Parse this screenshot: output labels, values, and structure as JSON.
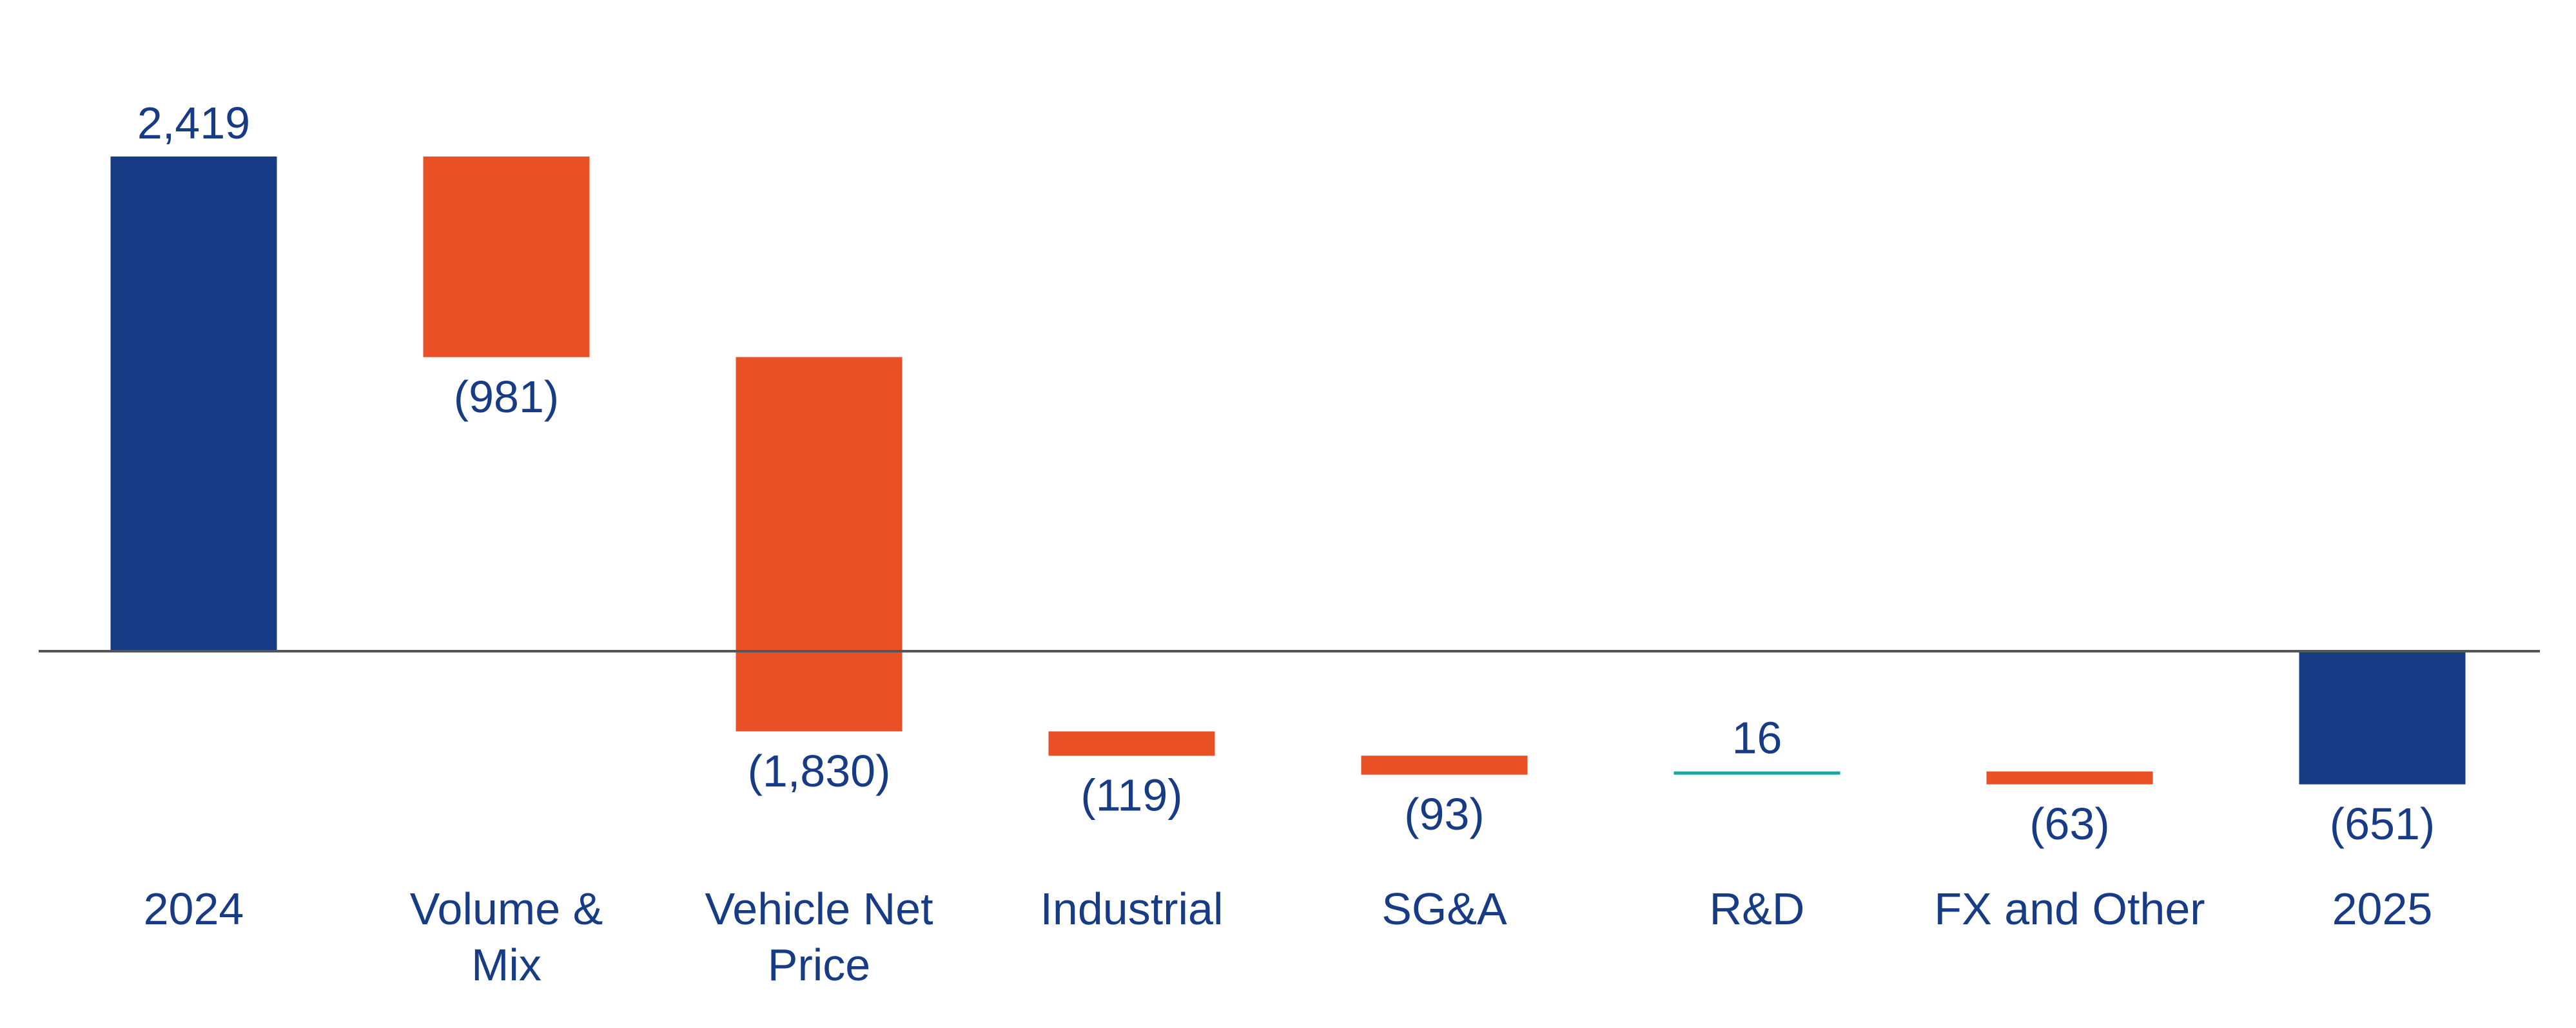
{
  "chart_data": {
    "type": "bar",
    "subtype": "waterfall",
    "categories": [
      [
        "2024"
      ],
      [
        "Volume &",
        "Mix"
      ],
      [
        "Vehicle Net",
        "Price"
      ],
      [
        "Industrial"
      ],
      [
        "SG&A"
      ],
      [
        "R&D"
      ],
      [
        "FX and Other"
      ],
      [
        "2025"
      ]
    ],
    "values": [
      2419,
      -981,
      -1830,
      -119,
      -93,
      16,
      -63,
      -651
    ],
    "kinds": [
      "total",
      "delta",
      "delta",
      "delta",
      "delta",
      "delta",
      "delta",
      "total"
    ],
    "value_labels": [
      "2,419",
      "(981)",
      "(1,830)",
      "(119)",
      "(93)",
      "16",
      "(63)",
      "(651)"
    ],
    "title": "",
    "xlabel": "",
    "ylabel": "",
    "ylim": [
      -900,
      2900
    ],
    "grid": false,
    "legend": "none",
    "colors": {
      "total": "#173B85",
      "decrease": "#E95026",
      "increase": "#1BA8A3",
      "label_text": "#173B85",
      "baseline": "#555555"
    }
  }
}
